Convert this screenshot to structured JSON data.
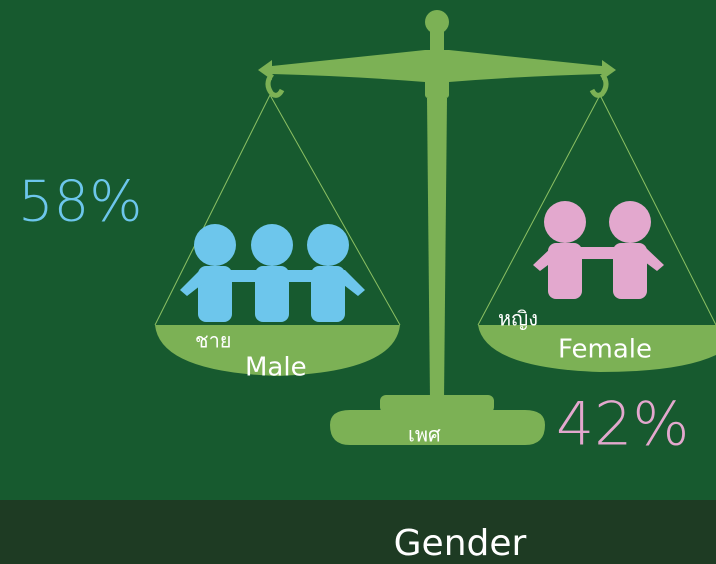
{
  "male": {
    "percent": "58%",
    "label_th": "ชาย",
    "label_en": "Male"
  },
  "female": {
    "percent": "42%",
    "label_th": "หญิง",
    "label_en": "Female"
  },
  "base_label": "เพศ",
  "footer": "Gender"
}
